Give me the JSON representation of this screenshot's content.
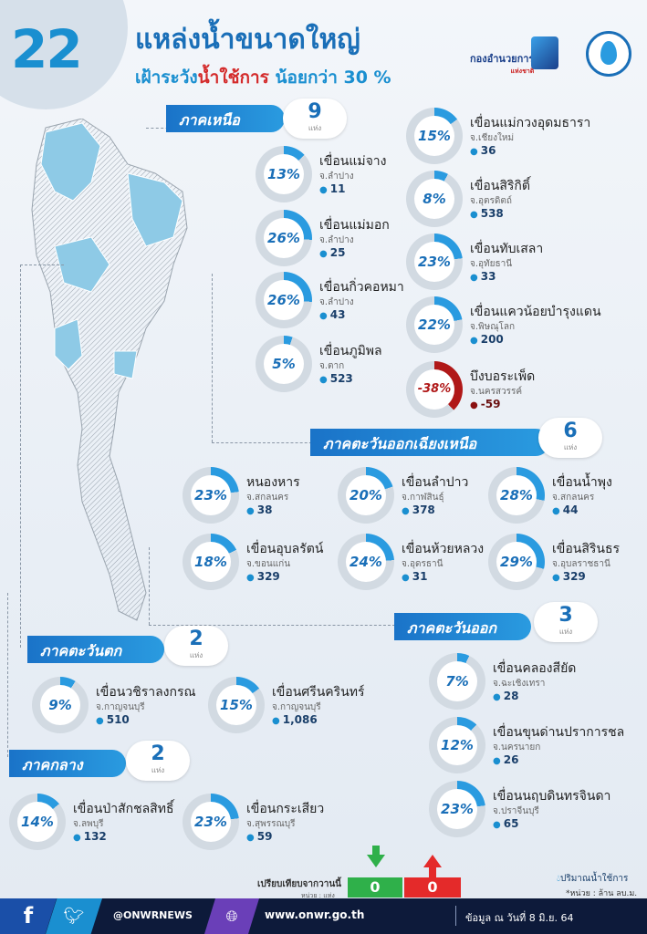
{
  "header": {
    "count": "22",
    "title": "แหล่งน้ำขนาดใหญ่",
    "subtitle_prefix": "เฝ้าระวัง",
    "subtitle_highlight": "น้ำใช้การ",
    "subtitle_suffix": "น้อยกว่า 30 %",
    "logo_text": "กองอำนวยการ",
    "logo_sub": "แห่งชาติ"
  },
  "regions": {
    "north": {
      "label": "ภาคเหนือ",
      "count": "9",
      "unit": "แห่ง"
    },
    "northeast": {
      "label": "ภาคตะวันออกเฉียงเหนือ",
      "count": "6",
      "unit": "แห่ง"
    },
    "east": {
      "label": "ภาคตะวันออก",
      "count": "3",
      "unit": "แห่ง"
    },
    "west": {
      "label": "ภาคตะวันตก",
      "count": "2",
      "unit": "แห่ง"
    },
    "central": {
      "label": "ภาคกลาง",
      "count": "2",
      "unit": "แห่ง"
    }
  },
  "dams": [
    {
      "name": "เขื่อนแม่จาง",
      "province": "จ.ลำปาง",
      "percent": 13,
      "label": "13%",
      "volume": "11"
    },
    {
      "name": "เขื่อนแม่มอก",
      "province": "จ.ลำปาง",
      "percent": 26,
      "label": "26%",
      "volume": "25"
    },
    {
      "name": "เขื่อนกิ่วคอหมา",
      "province": "จ.ลำปาง",
      "percent": 26,
      "label": "26%",
      "volume": "43"
    },
    {
      "name": "เขื่อนภูมิพล",
      "province": "จ.ตาก",
      "percent": 5,
      "label": "5%",
      "volume": "523"
    },
    {
      "name": "เขื่อนแม่กวงอุดมธารา",
      "province": "จ.เชียงใหม่",
      "percent": 15,
      "label": "15%",
      "volume": "36"
    },
    {
      "name": "เขื่อนสิริกิติ์",
      "province": "จ.อุตรดิตถ์",
      "percent": 8,
      "label": "8%",
      "volume": "538"
    },
    {
      "name": "เขื่อนทับเสลา",
      "province": "จ.อุทัยธานี",
      "percent": 23,
      "label": "23%",
      "volume": "33"
    },
    {
      "name": "เขื่อนแควน้อยบำรุงแดน",
      "province": "จ.พิษณุโลก",
      "percent": 22,
      "label": "22%",
      "volume": "200"
    },
    {
      "name": "บึงบอระเพ็ด",
      "province": "จ.นครสวรรค์",
      "percent": -38,
      "label": "-38%",
      "volume": "-59"
    },
    {
      "name": "หนองหาร",
      "province": "จ.สกลนคร",
      "percent": 23,
      "label": "23%",
      "volume": "38"
    },
    {
      "name": "เขื่อนลำปาว",
      "province": "จ.กาฬสินธุ์",
      "percent": 20,
      "label": "20%",
      "volume": "378"
    },
    {
      "name": "เขื่อนน้ำพุง",
      "province": "จ.สกลนคร",
      "percent": 28,
      "label": "28%",
      "volume": "44"
    },
    {
      "name": "เขื่อนอุบลรัตน์",
      "province": "จ.ขอนแก่น",
      "percent": 18,
      "label": "18%",
      "volume": "329"
    },
    {
      "name": "เขื่อนห้วยหลวง",
      "province": "จ.อุดรธานี",
      "percent": 24,
      "label": "24%",
      "volume": "31"
    },
    {
      "name": "เขื่อนสิรินธร",
      "province": "จ.อุบลราชธานี",
      "percent": 29,
      "label": "29%",
      "volume": "329"
    },
    {
      "name": "เขื่อนคลองสียัด",
      "province": "จ.ฉะเชิงเทรา",
      "percent": 7,
      "label": "7%",
      "volume": "28"
    },
    {
      "name": "เขื่อนขุนด่านปราการชล",
      "province": "จ.นครนายก",
      "percent": 12,
      "label": "12%",
      "volume": "26"
    },
    {
      "name": "เขื่อนนฤบดินทรจินดา",
      "province": "จ.ปราจีนบุรี",
      "percent": 23,
      "label": "23%",
      "volume": "65"
    },
    {
      "name": "เขื่อนวชิราลงกรณ",
      "province": "จ.กาญจนบุรี",
      "percent": 9,
      "label": "9%",
      "volume": "510"
    },
    {
      "name": "เขื่อนศรีนครินทร์",
      "province": "จ.กาญจนบุรี",
      "percent": 15,
      "label": "15%",
      "volume": "1,086"
    },
    {
      "name": "เขื่อนป่าสักชลสิทธิ์",
      "province": "จ.ลพบุรี",
      "percent": 14,
      "label": "14%",
      "volume": "132"
    },
    {
      "name": "เขื่อนกระเสียว",
      "province": "จ.สุพรรณบุรี",
      "percent": 23,
      "label": "23%",
      "volume": "59"
    }
  ],
  "comparison": {
    "label": "เปรียบเทียบจากวานนี้",
    "unit": "หน่วย : แห่ง",
    "decrease": "0",
    "increase": "0"
  },
  "legend": {
    "volume_label": "ปริมาณน้ำใช้การ",
    "unit_note": "*หน่วย : ล้าน ลบ.ม."
  },
  "footer": {
    "facebook": "f",
    "handle": "@ONWRNEWS",
    "website": "www.onwr.go.th",
    "date": "ข้อมูล ณ วันที่ 8 มิ.ย. 64"
  },
  "colors": {
    "ring_fill": "#2a9be0",
    "ring_track": "#d2dae2",
    "ring_negative": "#b01818",
    "brand": "#1a6fb8"
  }
}
